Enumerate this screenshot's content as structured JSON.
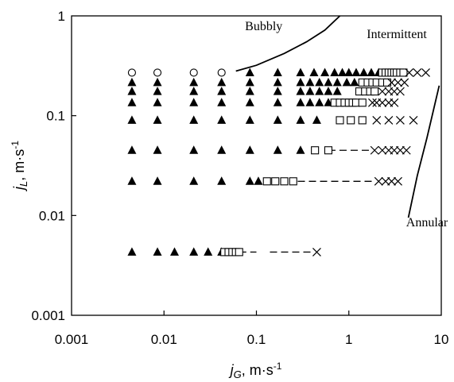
{
  "chart_data": {
    "type": "scatter",
    "xscale": "log",
    "yscale": "log",
    "xlim": [
      0.001,
      10
    ],
    "ylim": [
      0.001,
      1
    ],
    "xlabel": {
      "var": "j",
      "sub": "G",
      "unit": ", m·s",
      "exp": "-1"
    },
    "ylabel": {
      "var": "j",
      "sub": "L",
      "unit": ", m·s",
      "exp": "-1"
    },
    "x_tick_labels": [
      {
        "value": 0.001,
        "label": "0.001"
      },
      {
        "value": 0.01,
        "label": "0.01"
      },
      {
        "value": 0.1,
        "label": "0.1"
      },
      {
        "value": 1,
        "label": "1"
      },
      {
        "value": 10,
        "label": "10"
      }
    ],
    "y_tick_labels": [
      {
        "value": 0.001,
        "label": "0.001"
      },
      {
        "value": 0.01,
        "label": "0.01"
      },
      {
        "value": 0.1,
        "label": "0.1"
      },
      {
        "value": 1,
        "label": "1"
      }
    ],
    "annotations": [
      {
        "text": "Bubbly",
        "x": 0.12,
        "y": 0.72
      },
      {
        "text": "Intermittent",
        "x": 3.3,
        "y": 0.6
      },
      {
        "text": "Annular",
        "x": 7.0,
        "y": 0.0078
      }
    ],
    "boundary_lines": [
      {
        "boundary": "bubbly-intermittent",
        "x": [
          0.06,
          0.1,
          0.2,
          0.35,
          0.55,
          0.8
        ],
        "y": [
          0.28,
          0.32,
          0.42,
          0.55,
          0.72,
          1.0
        ]
      },
      {
        "boundary": "intermittent-annular",
        "x": [
          4.4,
          5.5,
          7.0,
          9.5
        ],
        "y": [
          0.0095,
          0.025,
          0.06,
          0.2
        ]
      }
    ],
    "series": [
      {
        "marker": "circle-open",
        "points": [
          [
            0.0045,
            0.27
          ],
          [
            0.0085,
            0.27
          ],
          [
            0.021,
            0.27
          ],
          [
            0.042,
            0.27
          ]
        ]
      },
      {
        "marker": "triangle-filled",
        "points": [
          [
            0.0045,
            0.0043
          ],
          [
            0.0085,
            0.0043
          ],
          [
            0.013,
            0.0043
          ],
          [
            0.021,
            0.0043
          ],
          [
            0.03,
            0.0043
          ],
          [
            0.042,
            0.0043
          ],
          [
            0.0045,
            0.022
          ],
          [
            0.0085,
            0.022
          ],
          [
            0.021,
            0.022
          ],
          [
            0.042,
            0.022
          ],
          [
            0.085,
            0.022
          ],
          [
            0.105,
            0.022
          ],
          [
            0.0045,
            0.045
          ],
          [
            0.0085,
            0.045
          ],
          [
            0.021,
            0.045
          ],
          [
            0.042,
            0.045
          ],
          [
            0.085,
            0.045
          ],
          [
            0.17,
            0.045
          ],
          [
            0.3,
            0.045
          ],
          [
            0.0045,
            0.09
          ],
          [
            0.0085,
            0.09
          ],
          [
            0.021,
            0.09
          ],
          [
            0.042,
            0.09
          ],
          [
            0.085,
            0.09
          ],
          [
            0.17,
            0.09
          ],
          [
            0.3,
            0.09
          ],
          [
            0.45,
            0.09
          ],
          [
            0.0045,
            0.135
          ],
          [
            0.0085,
            0.135
          ],
          [
            0.021,
            0.135
          ],
          [
            0.042,
            0.135
          ],
          [
            0.085,
            0.135
          ],
          [
            0.17,
            0.135
          ],
          [
            0.3,
            0.135
          ],
          [
            0.38,
            0.135
          ],
          [
            0.48,
            0.135
          ],
          [
            0.6,
            0.135
          ],
          [
            0.0045,
            0.175
          ],
          [
            0.0085,
            0.175
          ],
          [
            0.021,
            0.175
          ],
          [
            0.042,
            0.175
          ],
          [
            0.085,
            0.175
          ],
          [
            0.17,
            0.175
          ],
          [
            0.3,
            0.175
          ],
          [
            0.38,
            0.175
          ],
          [
            0.48,
            0.175
          ],
          [
            0.6,
            0.175
          ],
          [
            0.75,
            0.175
          ],
          [
            0.0045,
            0.215
          ],
          [
            0.0085,
            0.215
          ],
          [
            0.021,
            0.215
          ],
          [
            0.042,
            0.215
          ],
          [
            0.085,
            0.215
          ],
          [
            0.17,
            0.215
          ],
          [
            0.3,
            0.215
          ],
          [
            0.38,
            0.215
          ],
          [
            0.48,
            0.215
          ],
          [
            0.6,
            0.215
          ],
          [
            0.75,
            0.215
          ],
          [
            0.95,
            0.215
          ],
          [
            1.15,
            0.215
          ],
          [
            0.085,
            0.27
          ],
          [
            0.17,
            0.27
          ],
          [
            0.3,
            0.27
          ],
          [
            0.42,
            0.27
          ],
          [
            0.55,
            0.27
          ],
          [
            0.7,
            0.27
          ],
          [
            0.85,
            0.27
          ],
          [
            1.0,
            0.27
          ],
          [
            1.2,
            0.27
          ],
          [
            1.45,
            0.27
          ],
          [
            1.75,
            0.27
          ],
          [
            2.1,
            0.27
          ]
        ]
      },
      {
        "marker": "square-open",
        "points": [
          [
            0.045,
            0.0043
          ],
          [
            0.05,
            0.0043
          ],
          [
            0.055,
            0.0043
          ],
          [
            0.06,
            0.0043
          ],
          [
            0.065,
            0.0043
          ],
          [
            0.13,
            0.022
          ],
          [
            0.16,
            0.022
          ],
          [
            0.2,
            0.022
          ],
          [
            0.25,
            0.022
          ],
          [
            0.43,
            0.045
          ],
          [
            0.6,
            0.045
          ],
          [
            0.8,
            0.09
          ],
          [
            1.05,
            0.09
          ],
          [
            1.4,
            0.09
          ],
          [
            0.7,
            0.135
          ],
          [
            0.8,
            0.135
          ],
          [
            0.9,
            0.135
          ],
          [
            1.0,
            0.135
          ],
          [
            1.1,
            0.135
          ],
          [
            1.2,
            0.135
          ],
          [
            1.4,
            0.135
          ],
          [
            1.3,
            0.175
          ],
          [
            1.5,
            0.175
          ],
          [
            1.7,
            0.175
          ],
          [
            1.9,
            0.175
          ],
          [
            1.4,
            0.215
          ],
          [
            1.6,
            0.215
          ],
          [
            1.8,
            0.215
          ],
          [
            2.0,
            0.215
          ],
          [
            2.3,
            0.215
          ],
          [
            2.6,
            0.215
          ],
          [
            2.3,
            0.27
          ],
          [
            2.5,
            0.27
          ],
          [
            2.7,
            0.27
          ],
          [
            2.9,
            0.27
          ],
          [
            3.1,
            0.27
          ],
          [
            3.3,
            0.27
          ],
          [
            3.6,
            0.27
          ],
          [
            3.9,
            0.27
          ]
        ]
      },
      {
        "marker": "cross",
        "points": [
          [
            0.45,
            0.0043
          ],
          [
            2.1,
            0.022
          ],
          [
            2.5,
            0.022
          ],
          [
            2.9,
            0.022
          ],
          [
            3.4,
            0.022
          ],
          [
            1.9,
            0.045
          ],
          [
            2.3,
            0.045
          ],
          [
            2.7,
            0.045
          ],
          [
            3.1,
            0.045
          ],
          [
            3.6,
            0.045
          ],
          [
            4.2,
            0.045
          ],
          [
            2.0,
            0.09
          ],
          [
            2.7,
            0.09
          ],
          [
            3.6,
            0.09
          ],
          [
            5.0,
            0.09
          ],
          [
            1.8,
            0.135
          ],
          [
            2.0,
            0.135
          ],
          [
            2.3,
            0.135
          ],
          [
            2.7,
            0.135
          ],
          [
            3.1,
            0.135
          ],
          [
            2.3,
            0.175
          ],
          [
            2.7,
            0.175
          ],
          [
            3.1,
            0.175
          ],
          [
            3.6,
            0.175
          ],
          [
            2.9,
            0.215
          ],
          [
            3.4,
            0.215
          ],
          [
            4.0,
            0.215
          ],
          [
            4.5,
            0.27
          ],
          [
            5.5,
            0.27
          ],
          [
            6.8,
            0.27
          ]
        ]
      },
      {
        "marker": "dashed-line",
        "segments": [
          {
            "x": [
              0.065,
              0.1
            ],
            "y": [
              0.0043,
              0.0043
            ]
          },
          {
            "x": [
              0.14,
              0.42
            ],
            "y": [
              0.0043,
              0.0043
            ]
          },
          {
            "x": [
              0.28,
              1.9
            ],
            "y": [
              0.022,
              0.022
            ]
          },
          {
            "x": [
              0.6,
              1.8
            ],
            "y": [
              0.045,
              0.045
            ]
          },
          {
            "x": [
              1.4,
              1.8
            ],
            "y": [
              0.175,
              0.175
            ]
          },
          {
            "x": [
              2.5,
              3.0
            ],
            "y": [
              0.215,
              0.215
            ]
          },
          {
            "x": [
              3.9,
              4.3
            ],
            "y": [
              0.27,
              0.27
            ]
          }
        ]
      }
    ]
  }
}
